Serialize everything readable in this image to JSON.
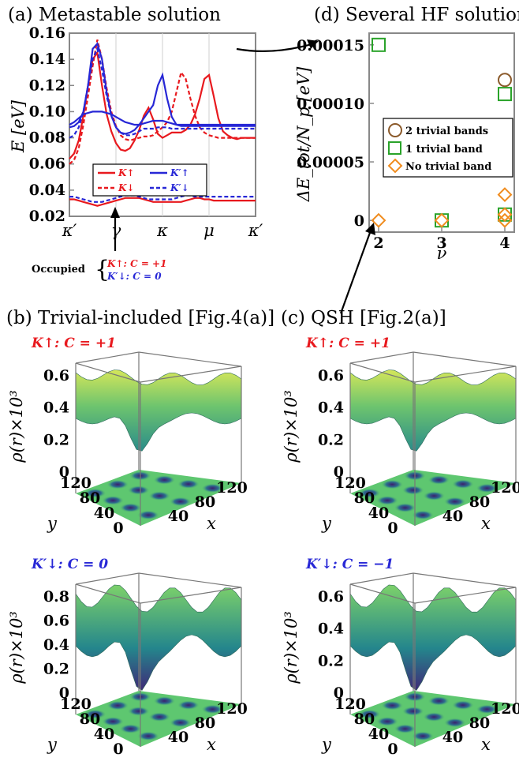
{
  "panel_a": {
    "title": "(a) Metastable solution",
    "ylabel": "E [eV]",
    "yticks": [
      "0.16",
      "0.14",
      "0.12",
      "0.10",
      "0.08",
      "0.06",
      "0.04",
      "0.02"
    ],
    "xticks": [
      "κ′",
      "γ",
      "κ",
      "μ",
      "κ′"
    ],
    "legend": [
      "K↑",
      "K′↑",
      "K↓",
      "K′↓"
    ],
    "occupied_label": "Occupied",
    "occupied_items": [
      "K↑: C = +1",
      "K′↓: C = 0"
    ]
  },
  "panel_d": {
    "title": "(d) Several HF solutions",
    "ylabel": "ΔE_tot/N_p [eV]",
    "xlabel": "ν",
    "yticks": [
      "0.00015",
      "0.00010",
      "0.00005",
      "0"
    ],
    "xticks": [
      "2",
      "3",
      "4"
    ],
    "legend": [
      "2 trivial bands",
      "1 trivial band",
      "No trivial band"
    ]
  },
  "panel_b": {
    "title": "(b) Trivial-included [Fig.4(a)]"
  },
  "panel_c": {
    "title": "(c) QSH [Fig.2(a)]"
  },
  "surfaces": [
    {
      "label": "K↑: C = +1",
      "zticks": [
        "0.6",
        "0.4",
        "0.2",
        "0"
      ]
    },
    {
      "label": "K↑: C = +1",
      "zticks": [
        "0.6",
        "0.4",
        "0.2",
        "0"
      ]
    },
    {
      "label": "K′↓: C = 0",
      "zticks": [
        "0.8",
        "0.6",
        "0.4",
        "0.2",
        "0"
      ]
    },
    {
      "label": "K′↓: C = −1",
      "zticks": [
        "0.6",
        "0.4",
        "0.2",
        "0"
      ]
    }
  ],
  "surface_axes": {
    "zlabel": "ρ(r)×10³",
    "ylabel": "y",
    "xlabel": "x",
    "yticks": [
      "120",
      "80",
      "40",
      "0"
    ],
    "xticks": [
      "40",
      "80",
      "120"
    ]
  },
  "chart_data": [
    {
      "type": "line",
      "title": "(a) Metastable solution",
      "xlabel": "",
      "ylabel": "E [eV]",
      "ylim": [
        0.02,
        0.16
      ],
      "x_ticks": [
        "κ′",
        "γ",
        "κ",
        "μ",
        "κ′"
      ],
      "x": [
        0.0,
        0.1,
        0.2,
        0.3,
        0.4,
        0.5,
        0.6,
        0.7,
        0.8,
        0.9,
        1.0,
        1.1,
        1.2,
        1.3,
        1.4,
        1.5,
        1.6,
        1.7,
        1.8,
        1.9,
        2.0,
        2.1,
        2.2,
        2.3,
        2.4,
        2.5,
        2.6,
        2.7,
        2.8,
        2.9,
        3.0,
        3.1,
        3.2,
        3.3,
        3.4,
        3.5,
        3.6,
        3.7,
        3.8,
        3.9,
        4.0
      ],
      "series": [
        {
          "name": "K↑",
          "color": "#e8191e",
          "dash": false,
          "values": [
            0.064,
            0.068,
            0.078,
            0.097,
            0.12,
            0.14,
            0.145,
            0.12,
            0.098,
            0.085,
            0.076,
            0.071,
            0.07,
            0.072,
            0.078,
            0.086,
            0.097,
            0.103,
            0.094,
            0.083,
            0.08,
            0.082,
            0.084,
            0.084,
            0.084,
            0.086,
            0.09,
            0.098,
            0.11,
            0.125,
            0.128,
            0.112,
            0.095,
            0.085,
            0.082,
            0.08,
            0.079,
            0.08,
            0.08,
            0.08,
            0.08
          ]
        },
        {
          "name": "K↑",
          "color": "#e8191e",
          "dash": false,
          "values": [
            0.033,
            0.033,
            0.032,
            0.031,
            0.03,
            0.029,
            0.028,
            0.029,
            0.03,
            0.031,
            0.032,
            0.033,
            0.034,
            0.034,
            0.034,
            0.034,
            0.033,
            0.032,
            0.031,
            0.031,
            0.031,
            0.031,
            0.031,
            0.031,
            0.031,
            0.032,
            0.033,
            0.034,
            0.034,
            0.033,
            0.033,
            0.032,
            0.032,
            0.032,
            0.032,
            0.032,
            0.032,
            0.032,
            0.032,
            0.032,
            0.032
          ]
        },
        {
          "name": "K↓",
          "color": "#e8191e",
          "dash": true,
          "values": [
            0.06,
            0.063,
            0.072,
            0.09,
            0.112,
            0.135,
            0.155,
            0.14,
            0.118,
            0.1,
            0.089,
            0.082,
            0.079,
            0.078,
            0.079,
            0.08,
            0.081,
            0.081,
            0.082,
            0.085,
            0.088,
            0.092,
            0.1,
            0.115,
            0.13,
            0.125,
            0.11,
            0.097,
            0.088,
            0.084,
            0.082,
            0.081,
            0.08,
            0.08,
            0.08,
            0.08,
            0.08,
            0.08,
            0.08,
            0.08,
            0.08
          ]
        },
        {
          "name": "K′↑",
          "color": "#2727d6",
          "dash": false,
          "values": [
            0.088,
            0.089,
            0.092,
            0.1,
            0.12,
            0.148,
            0.152,
            0.14,
            0.115,
            0.097,
            0.088,
            0.084,
            0.083,
            0.084,
            0.086,
            0.09,
            0.095,
            0.1,
            0.105,
            0.12,
            0.128,
            0.11,
            0.096,
            0.09,
            0.089,
            0.089,
            0.089,
            0.089,
            0.089,
            0.089,
            0.089,
            0.089,
            0.089,
            0.089,
            0.089,
            0.089,
            0.089,
            0.089,
            0.089,
            0.089,
            0.089
          ]
        },
        {
          "name": "K′↑",
          "color": "#2727d6",
          "dash": false,
          "values": [
            0.09,
            0.092,
            0.095,
            0.098,
            0.099,
            0.1,
            0.1,
            0.1,
            0.099,
            0.098,
            0.096,
            0.094,
            0.092,
            0.091,
            0.09,
            0.09,
            0.091,
            0.092,
            0.093,
            0.093,
            0.093,
            0.092,
            0.091,
            0.09,
            0.09,
            0.09,
            0.09,
            0.09,
            0.09,
            0.09,
            0.09,
            0.09,
            0.09,
            0.09,
            0.09,
            0.09,
            0.09,
            0.09,
            0.09,
            0.09,
            0.09
          ]
        },
        {
          "name": "K′↓",
          "color": "#2727d6",
          "dash": true,
          "values": [
            0.08,
            0.082,
            0.088,
            0.1,
            0.12,
            0.14,
            0.148,
            0.132,
            0.112,
            0.097,
            0.088,
            0.084,
            0.082,
            0.082,
            0.083,
            0.085,
            0.087,
            0.087,
            0.087,
            0.088,
            0.088,
            0.088,
            0.087,
            0.087,
            0.087,
            0.087,
            0.087,
            0.087,
            0.087,
            0.087,
            0.087,
            0.087,
            0.087,
            0.087,
            0.087,
            0.087,
            0.087,
            0.087,
            0.087,
            0.087,
            0.087
          ]
        },
        {
          "name": "K′↓",
          "color": "#2727d6",
          "dash": true,
          "values": [
            0.035,
            0.035,
            0.034,
            0.033,
            0.032,
            0.031,
            0.031,
            0.031,
            0.032,
            0.033,
            0.034,
            0.035,
            0.036,
            0.036,
            0.036,
            0.035,
            0.034,
            0.033,
            0.033,
            0.033,
            0.033,
            0.033,
            0.033,
            0.034,
            0.035,
            0.036,
            0.036,
            0.035,
            0.035,
            0.035,
            0.035,
            0.035,
            0.035,
            0.035,
            0.035,
            0.035,
            0.035,
            0.035,
            0.035,
            0.035,
            0.035
          ]
        }
      ]
    },
    {
      "type": "scatter",
      "title": "(d) Several HF solutions",
      "xlabel": "ν",
      "ylabel": "ΔE_tot/N_p [eV]",
      "ylim": [
        -1e-05,
        0.00016
      ],
      "xlim": [
        1.85,
        4.15
      ],
      "series": [
        {
          "name": "2 trivial bands",
          "color": "#8b5a2b",
          "marker": "circle",
          "points": [
            [
              4,
              0.00012
            ]
          ]
        },
        {
          "name": "1 trivial band",
          "color": "#2aa32a",
          "marker": "square",
          "points": [
            [
              2,
              0.00015
            ],
            [
              3,
              0.0
            ],
            [
              4,
              0.000108
            ],
            [
              4,
              5e-06
            ]
          ]
        },
        {
          "name": "No trivial band",
          "color": "#f08c1e",
          "marker": "diamond",
          "points": [
            [
              2,
              0.0
            ],
            [
              3,
              0.0
            ],
            [
              4,
              2.2e-05
            ],
            [
              4,
              5e-06
            ],
            [
              4,
              0.0
            ]
          ]
        }
      ]
    }
  ]
}
